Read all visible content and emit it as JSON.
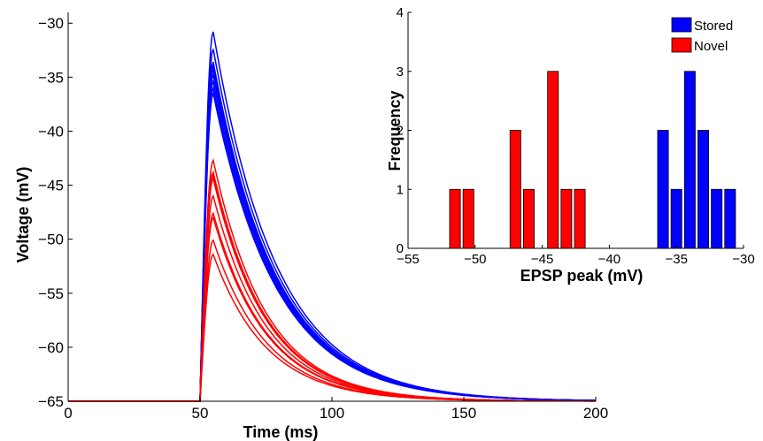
{
  "chart_data": [
    {
      "type": "line",
      "xlabel": "Time (ms)",
      "ylabel": "Voltage (mV)",
      "xlim": [
        0,
        200
      ],
      "ylim": [
        -65,
        -29
      ],
      "xticks": [
        "0",
        "50",
        "100",
        "150",
        "200"
      ],
      "yticks": [
        "−30",
        "−35",
        "−40",
        "−45",
        "−50",
        "−55",
        "−60",
        "−65"
      ],
      "baseline_mV": -65,
      "stimulus_onset_ms": 50,
      "peak_time_ms": 55,
      "grid": false,
      "series": [
        {
          "group": "Stored",
          "color": "#0000FF",
          "peaks_mV": [
            -30.8,
            -32.4,
            -33.6,
            -33.9,
            -34.3,
            -34.8,
            -35.4,
            -36.0,
            -36.5
          ],
          "decay_tau_ms": 24
        },
        {
          "group": "Novel",
          "color": "#FF0000",
          "peaks_mV": [
            -42.7,
            -43.8,
            -44.1,
            -44.4,
            -46.0,
            -47.6,
            -48.0,
            -50.1,
            -51.4
          ],
          "decay_tau_ms": 20
        }
      ]
    },
    {
      "type": "bar",
      "xlabel": "EPSP peak (mV)",
      "ylabel": "Frequency",
      "xlim": [
        -55,
        -30
      ],
      "ylim": [
        0,
        4
      ],
      "xticks": [
        "−55",
        "−50",
        "−45",
        "−40",
        "−35",
        "−30"
      ],
      "yticks": [
        "0",
        "1",
        "2",
        "3",
        "4"
      ],
      "bin_width_mV": 1,
      "legend_position": "top-right",
      "series": [
        {
          "name": "Stored",
          "color": "#0000FF",
          "bins": [
            {
              "x": -36,
              "value": 2
            },
            {
              "x": -35,
              "value": 1
            },
            {
              "x": -34,
              "value": 3
            },
            {
              "x": -33,
              "value": 2
            },
            {
              "x": -32,
              "value": 1
            },
            {
              "x": -31,
              "value": 1
            }
          ]
        },
        {
          "name": "Novel",
          "color": "#FF0000",
          "bins": [
            {
              "x": -51.5,
              "value": 1
            },
            {
              "x": -50.5,
              "value": 1
            },
            {
              "x": -47,
              "value": 2
            },
            {
              "x": -46,
              "value": 1
            },
            {
              "x": -44.2,
              "value": 3
            },
            {
              "x": -43.2,
              "value": 1
            },
            {
              "x": -42.2,
              "value": 1
            }
          ]
        }
      ]
    }
  ]
}
